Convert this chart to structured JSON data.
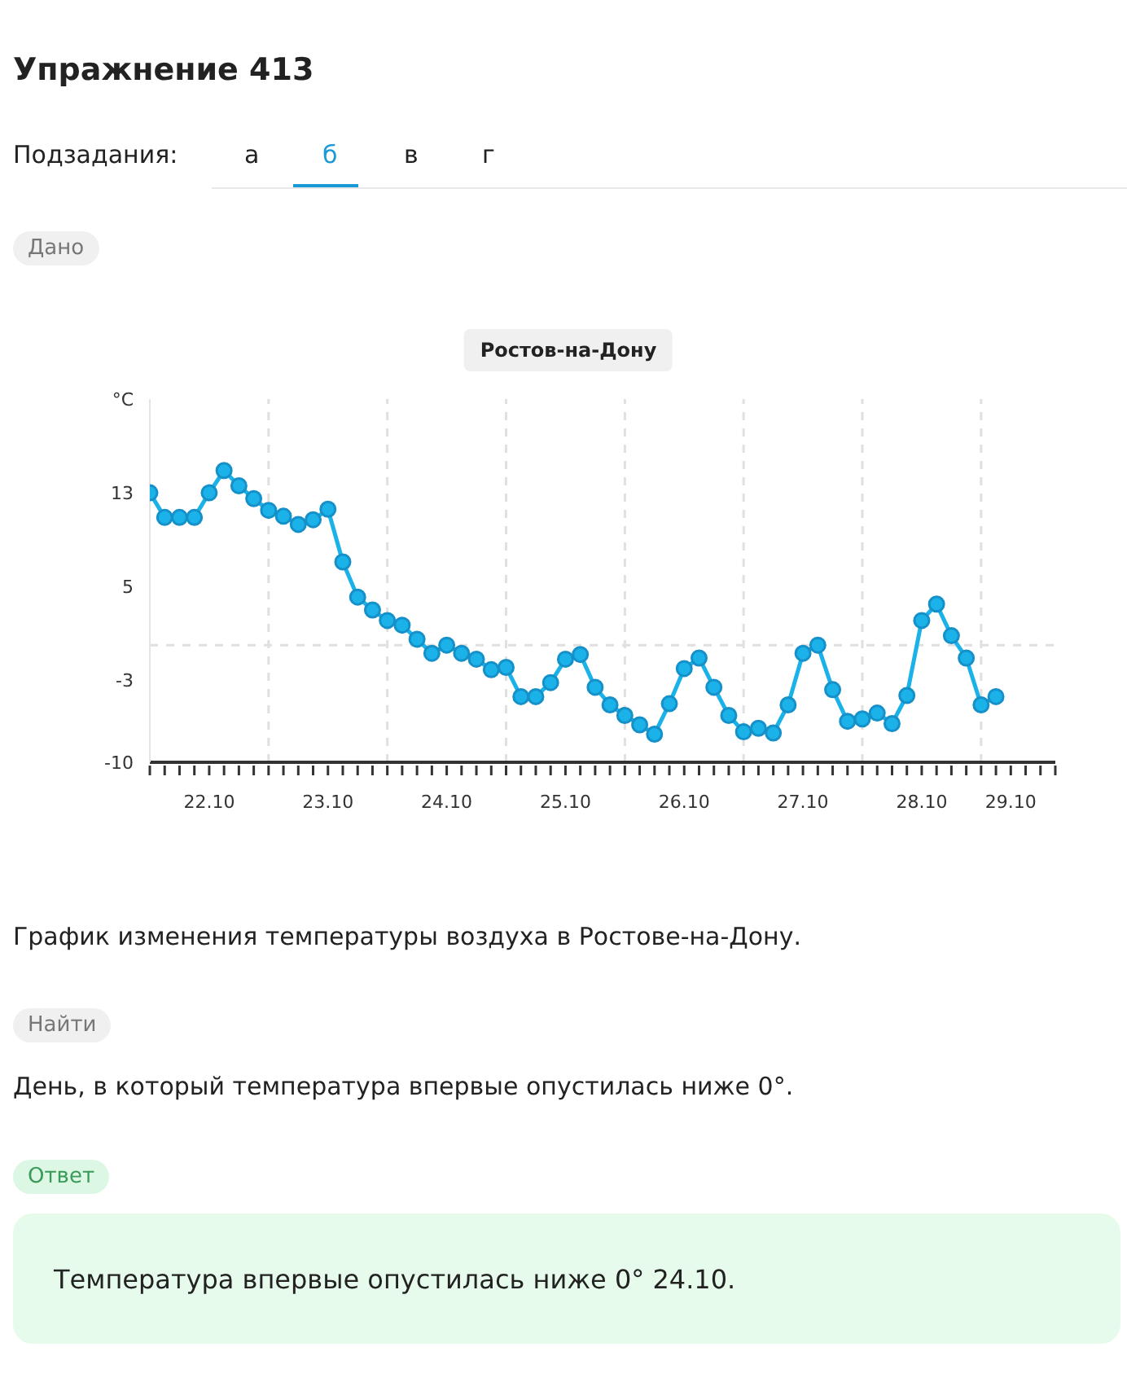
{
  "chart_data": {
    "type": "line",
    "title": "Ростов-на-Дону",
    "annotations": [
      "Упражнение 413",
      "Подзадания:",
      "а",
      "б",
      "в",
      "г",
      "Дано",
      "График изменения температуры воздуха в Ростове-на-Дону.",
      "Найти",
      "День, в который температура впервые опустилась ниже 0°.",
      "Ответ",
      "Температура впервые опустилась ниже 0° 24.10."
    ],
    "x": [
      "--10-22T00:00",
      "--10-22T03:00",
      "--10-22T06:00",
      "--10-22T09:00",
      "--10-22T12:00",
      "--10-22T15:00",
      "--10-22T18:00",
      "--10-22T21:00",
      "--10-23T00:00",
      "--10-23T03:00",
      "--10-23T06:00",
      "--10-23T09:00",
      "--10-23T12:00",
      "--10-23T15:00",
      "--10-23T18:00",
      "--10-23T21:00",
      "--10-24T00:00",
      "--10-24T03:00",
      "--10-24T06:00",
      "--10-24T09:00",
      "--10-24T12:00",
      "--10-24T15:00",
      "--10-24T18:00",
      "--10-24T21:00",
      "--10-25T00:00",
      "--10-25T03:00",
      "--10-25T06:00",
      "--10-25T09:00",
      "--10-25T12:00",
      "--10-25T15:00",
      "--10-25T18:00",
      "--10-25T21:00",
      "--10-26T00:00",
      "--10-26T03:00",
      "--10-26T06:00",
      "--10-26T09:00",
      "--10-26T12:00",
      "--10-26T15:00",
      "--10-26T18:00",
      "--10-26T21:00",
      "--10-27T00:00",
      "--10-27T03:00",
      "--10-27T06:00",
      "--10-27T09:00",
      "--10-27T12:00",
      "--10-27T15:00",
      "--10-27T18:00",
      "--10-27T21:00",
      "--10-28T00:00",
      "--10-28T03:00",
      "--10-28T06:00",
      "--10-28T09:00",
      "--10-28T12:00",
      "--10-28T15:00",
      "--10-28T18:00",
      "--10-28T21:00",
      "--10-29T00:00",
      "--10-29T03:00"
    ],
    "series": [
      {
        "color": "#1ab2e8",
        "values": [
          13,
          10.9,
          10.9,
          10.9,
          13,
          14.9,
          13.6,
          12.5,
          11.5,
          11,
          10.3,
          10.7,
          11.6,
          7.1,
          4.1,
          3,
          2.1,
          1.7,
          0.5,
          -0.7,
          0,
          -0.7,
          -1.2,
          -2.1,
          -1.9,
          -4.4,
          -4.4,
          -3.2,
          -1.2,
          -0.8,
          -3.6,
          -5.1,
          -6,
          -6.8,
          -7.6,
          -5,
          -2,
          -1.1,
          -3.6,
          -6,
          -7.4,
          -7.1,
          -7.5,
          -5.1,
          -0.7,
          0,
          -3.8,
          -6.5,
          -6.3,
          -5.8,
          -6.7,
          -4.3,
          2.1,
          3.5,
          0.8,
          -1.1,
          -5.1,
          -4.4
        ]
      }
    ],
    "xlim": [
      "--10-22T00:00",
      "--10-29T15:00"
    ],
    "xticks": [
      {
        "value": "--10-22T00:00",
        "label": null
      },
      {
        "value": "--10-22T03:00",
        "label": null
      },
      {
        "value": "--10-22T06:00",
        "label": null
      },
      {
        "value": "--10-22T09:00",
        "label": null
      },
      {
        "value": "--10-22T12:00",
        "label": "22.10"
      },
      {
        "value": "--10-22T15:00",
        "label": null
      },
      {
        "value": "--10-22T18:00",
        "label": null
      },
      {
        "value": "--10-22T21:00",
        "label": null
      },
      {
        "value": "--10-23T00:00",
        "label": null
      },
      {
        "value": "--10-23T03:00",
        "label": null
      },
      {
        "value": "--10-23T06:00",
        "label": null
      },
      {
        "value": "--10-23T09:00",
        "label": null
      },
      {
        "value": "--10-23T12:00",
        "label": "23.10"
      },
      {
        "value": "--10-23T15:00",
        "label": null
      },
      {
        "value": "--10-23T18:00",
        "label": null
      },
      {
        "value": "--10-23T21:00",
        "label": null
      },
      {
        "value": "--10-24T00:00",
        "label": null
      },
      {
        "value": "--10-24T03:00",
        "label": null
      },
      {
        "value": "--10-24T06:00",
        "label": null
      },
      {
        "value": "--10-24T09:00",
        "label": null
      },
      {
        "value": "--10-24T12:00",
        "label": "24.10"
      },
      {
        "value": "--10-24T15:00",
        "label": null
      },
      {
        "value": "--10-24T18:00",
        "label": null
      },
      {
        "value": "--10-24T21:00",
        "label": null
      },
      {
        "value": "--10-25T00:00",
        "label": null
      },
      {
        "value": "--10-25T03:00",
        "label": null
      },
      {
        "value": "--10-25T06:00",
        "label": null
      },
      {
        "value": "--10-25T09:00",
        "label": null
      },
      {
        "value": "--10-25T12:00",
        "label": "25.10"
      },
      {
        "value": "--10-25T15:00",
        "label": null
      },
      {
        "value": "--10-25T18:00",
        "label": null
      },
      {
        "value": "--10-25T21:00",
        "label": null
      },
      {
        "value": "--10-26T00:00",
        "label": null
      },
      {
        "value": "--10-26T03:00",
        "label": null
      },
      {
        "value": "--10-26T06:00",
        "label": null
      },
      {
        "value": "--10-26T09:00",
        "label": null
      },
      {
        "value": "--10-26T12:00",
        "label": "26.10"
      },
      {
        "value": "--10-26T15:00",
        "label": null
      },
      {
        "value": "--10-26T18:00",
        "label": null
      },
      {
        "value": "--10-26T21:00",
        "label": null
      },
      {
        "value": "--10-27T00:00",
        "label": null
      },
      {
        "value": "--10-27T03:00",
        "label": null
      },
      {
        "value": "--10-27T06:00",
        "label": null
      },
      {
        "value": "--10-27T09:00",
        "label": null
      },
      {
        "value": "--10-27T12:00",
        "label": "27.10"
      },
      {
        "value": "--10-27T15:00",
        "label": null
      },
      {
        "value": "--10-27T18:00",
        "label": null
      },
      {
        "value": "--10-27T21:00",
        "label": null
      },
      {
        "value": "--10-28T00:00",
        "label": null
      },
      {
        "value": "--10-28T03:00",
        "label": null
      },
      {
        "value": "--10-28T06:00",
        "label": null
      },
      {
        "value": "--10-28T09:00",
        "label": null
      },
      {
        "value": "--10-28T12:00",
        "label": "28.10"
      },
      {
        "value": "--10-28T15:00",
        "label": null
      },
      {
        "value": "--10-28T18:00",
        "label": null
      },
      {
        "value": "--10-28T21:00",
        "label": null
      },
      {
        "value": "--10-29T00:00",
        "label": null
      },
      {
        "value": "--10-29T03:00",
        "label": null
      },
      {
        "value": "--10-29T06:00",
        "label": "29.10"
      },
      {
        "value": "--10-29T09:00",
        "label": null
      },
      {
        "value": "--10-29T12:00",
        "label": null
      },
      {
        "value": "--10-29T15:00",
        "label": null
      }
    ],
    "ylim": [
      -10,
      21
    ],
    "yticks": [
      -10,
      -3,
      5,
      13,
      {
        "value": 21,
        "label": "°C"
      }
    ],
    "ref_lines": [
      {
        "axis": "y",
        "value": 0,
        "color": "#e0e0e0",
        "line_style": "dashed"
      },
      {
        "axis": "x",
        "value": "--10-23T00:00",
        "color": "#e0e0e0",
        "line_style": "dashed"
      },
      {
        "axis": "x",
        "value": "--10-24T00:00",
        "color": "#e0e0e0",
        "line_style": "dashed"
      },
      {
        "axis": "x",
        "value": "--10-25T00:00",
        "color": "#e0e0e0",
        "line_style": "dashed"
      },
      {
        "axis": "x",
        "value": "--10-26T00:00",
        "color": "#e0e0e0",
        "line_style": "dashed"
      },
      {
        "axis": "x",
        "value": "--10-27T00:00",
        "color": "#e0e0e0",
        "line_style": "dashed"
      },
      {
        "axis": "x",
        "value": "--10-28T00:00",
        "color": "#e0e0e0",
        "line_style": "dashed"
      },
      {
        "axis": "x",
        "value": "--10-29T00:00",
        "color": "#e0e0e0",
        "line_style": "dashed"
      }
    ],
    "grid": false,
    "legend": false,
    "marker": "circle",
    "line_style": "solid"
  }
}
